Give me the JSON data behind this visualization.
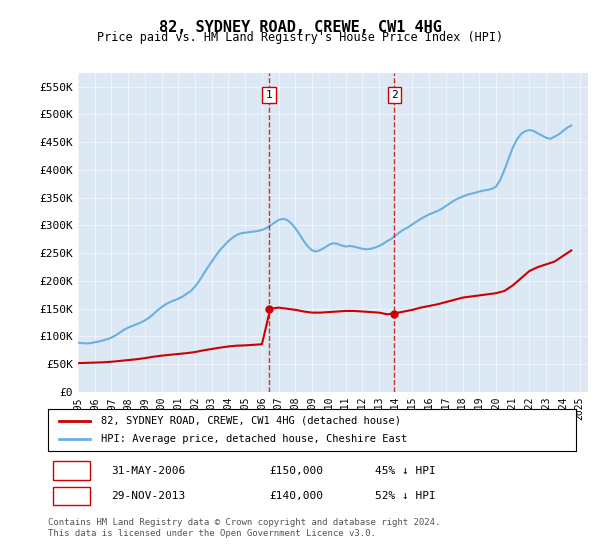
{
  "title": "82, SYDNEY ROAD, CREWE, CW1 4HG",
  "subtitle": "Price paid vs. HM Land Registry's House Price Index (HPI)",
  "ylabel": "",
  "ylim": [
    0,
    575000
  ],
  "yticks": [
    0,
    50000,
    100000,
    150000,
    200000,
    250000,
    300000,
    350000,
    400000,
    450000,
    500000,
    550000
  ],
  "ytick_labels": [
    "£0",
    "£50K",
    "£100K",
    "£150K",
    "£200K",
    "£250K",
    "£300K",
    "£350K",
    "£400K",
    "£450K",
    "£500K",
    "£550K"
  ],
  "xlim_start": 1995.0,
  "xlim_end": 2025.5,
  "bg_color": "#dce9f5",
  "plot_bg_color": "#dce9f5",
  "red_line_color": "#cc0000",
  "blue_line_color": "#6ab0e0",
  "transaction1_x": 2006.42,
  "transaction1_y": 150000,
  "transaction1_label": "1",
  "transaction1_date": "31-MAY-2006",
  "transaction1_price": "£150,000",
  "transaction1_hpi": "45% ↓ HPI",
  "transaction2_x": 2013.92,
  "transaction2_y": 140000,
  "transaction2_label": "2",
  "transaction2_date": "29-NOV-2013",
  "transaction2_price": "£140,000",
  "transaction2_hpi": "52% ↓ HPI",
  "legend_line1": "82, SYDNEY ROAD, CREWE, CW1 4HG (detached house)",
  "legend_line2": "HPI: Average price, detached house, Cheshire East",
  "footer1": "Contains HM Land Registry data © Crown copyright and database right 2024.",
  "footer2": "This data is licensed under the Open Government Licence v3.0.",
  "hpi_years": [
    1995.0,
    1995.25,
    1995.5,
    1995.75,
    1996.0,
    1996.25,
    1996.5,
    1996.75,
    1997.0,
    1997.25,
    1997.5,
    1997.75,
    1998.0,
    1998.25,
    1998.5,
    1998.75,
    1999.0,
    1999.25,
    1999.5,
    1999.75,
    2000.0,
    2000.25,
    2000.5,
    2000.75,
    2001.0,
    2001.25,
    2001.5,
    2001.75,
    2002.0,
    2002.25,
    2002.5,
    2002.75,
    2003.0,
    2003.25,
    2003.5,
    2003.75,
    2004.0,
    2004.25,
    2004.5,
    2004.75,
    2005.0,
    2005.25,
    2005.5,
    2005.75,
    2006.0,
    2006.25,
    2006.5,
    2006.75,
    2007.0,
    2007.25,
    2007.5,
    2007.75,
    2008.0,
    2008.25,
    2008.5,
    2008.75,
    2009.0,
    2009.25,
    2009.5,
    2009.75,
    2010.0,
    2010.25,
    2010.5,
    2010.75,
    2011.0,
    2011.25,
    2011.5,
    2011.75,
    2012.0,
    2012.25,
    2012.5,
    2012.75,
    2013.0,
    2013.25,
    2013.5,
    2013.75,
    2014.0,
    2014.25,
    2014.5,
    2014.75,
    2015.0,
    2015.25,
    2015.5,
    2015.75,
    2016.0,
    2016.25,
    2016.5,
    2016.75,
    2017.0,
    2017.25,
    2017.5,
    2017.75,
    2018.0,
    2018.25,
    2018.5,
    2018.75,
    2019.0,
    2019.25,
    2019.5,
    2019.75,
    2020.0,
    2020.25,
    2020.5,
    2020.75,
    2021.0,
    2021.25,
    2021.5,
    2021.75,
    2022.0,
    2022.25,
    2022.5,
    2022.75,
    2023.0,
    2023.25,
    2023.5,
    2023.75,
    2024.0,
    2024.25,
    2024.5
  ],
  "hpi_values": [
    89000,
    88000,
    87500,
    88000,
    89500,
    91000,
    93000,
    95000,
    98000,
    102000,
    107000,
    112000,
    116000,
    119000,
    122000,
    125000,
    129000,
    134000,
    140000,
    147000,
    153000,
    158000,
    162000,
    165000,
    168000,
    172000,
    177000,
    182000,
    190000,
    200000,
    212000,
    224000,
    235000,
    246000,
    256000,
    264000,
    272000,
    278000,
    283000,
    286000,
    287000,
    288000,
    289000,
    290000,
    292000,
    295000,
    300000,
    305000,
    310000,
    312000,
    310000,
    304000,
    295000,
    284000,
    272000,
    262000,
    255000,
    253000,
    256000,
    260000,
    265000,
    268000,
    267000,
    264000,
    262000,
    263000,
    262000,
    260000,
    258000,
    257000,
    258000,
    260000,
    263000,
    267000,
    272000,
    276000,
    282000,
    288000,
    293000,
    297000,
    302000,
    307000,
    312000,
    316000,
    320000,
    323000,
    326000,
    330000,
    335000,
    340000,
    345000,
    349000,
    352000,
    355000,
    357000,
    359000,
    361000,
    363000,
    364000,
    366000,
    370000,
    382000,
    400000,
    420000,
    440000,
    455000,
    465000,
    470000,
    472000,
    470000,
    466000,
    462000,
    458000,
    456000,
    460000,
    464000,
    470000,
    476000,
    480000
  ],
  "red_years": [
    1995.0,
    1995.5,
    1996.0,
    1996.5,
    1997.0,
    1997.5,
    1998.0,
    1998.5,
    1999.0,
    1999.5,
    2000.0,
    2000.5,
    2001.0,
    2001.5,
    2002.0,
    2002.5,
    2003.0,
    2003.5,
    2004.0,
    2004.5,
    2005.0,
    2005.5,
    2006.0,
    2006.5,
    2007.0,
    2007.5,
    2008.0,
    2008.5,
    2009.0,
    2009.5,
    2010.0,
    2010.5,
    2011.0,
    2011.5,
    2012.0,
    2012.5,
    2013.0,
    2013.5,
    2014.0,
    2014.5,
    2015.0,
    2015.5,
    2016.0,
    2016.5,
    2017.0,
    2017.5,
    2018.0,
    2018.5,
    2019.0,
    2019.5,
    2020.0,
    2020.5,
    2021.0,
    2021.5,
    2022.0,
    2022.5,
    2023.0,
    2023.5,
    2024.0,
    2024.5
  ],
  "red_values": [
    52000,
    52500,
    53000,
    53500,
    54500,
    56000,
    57500,
    59000,
    61000,
    63500,
    65500,
    67000,
    68500,
    70000,
    72000,
    75000,
    77500,
    80000,
    82000,
    83500,
    84000,
    85000,
    86000,
    150000,
    152000,
    150000,
    148000,
    145000,
    143000,
    143000,
    144000,
    145000,
    146000,
    146000,
    145000,
    144000,
    143000,
    140000,
    142000,
    145000,
    148000,
    152000,
    155000,
    158000,
    162000,
    166000,
    170000,
    172000,
    174000,
    176000,
    178000,
    182000,
    192000,
    205000,
    218000,
    225000,
    230000,
    235000,
    245000,
    255000
  ]
}
